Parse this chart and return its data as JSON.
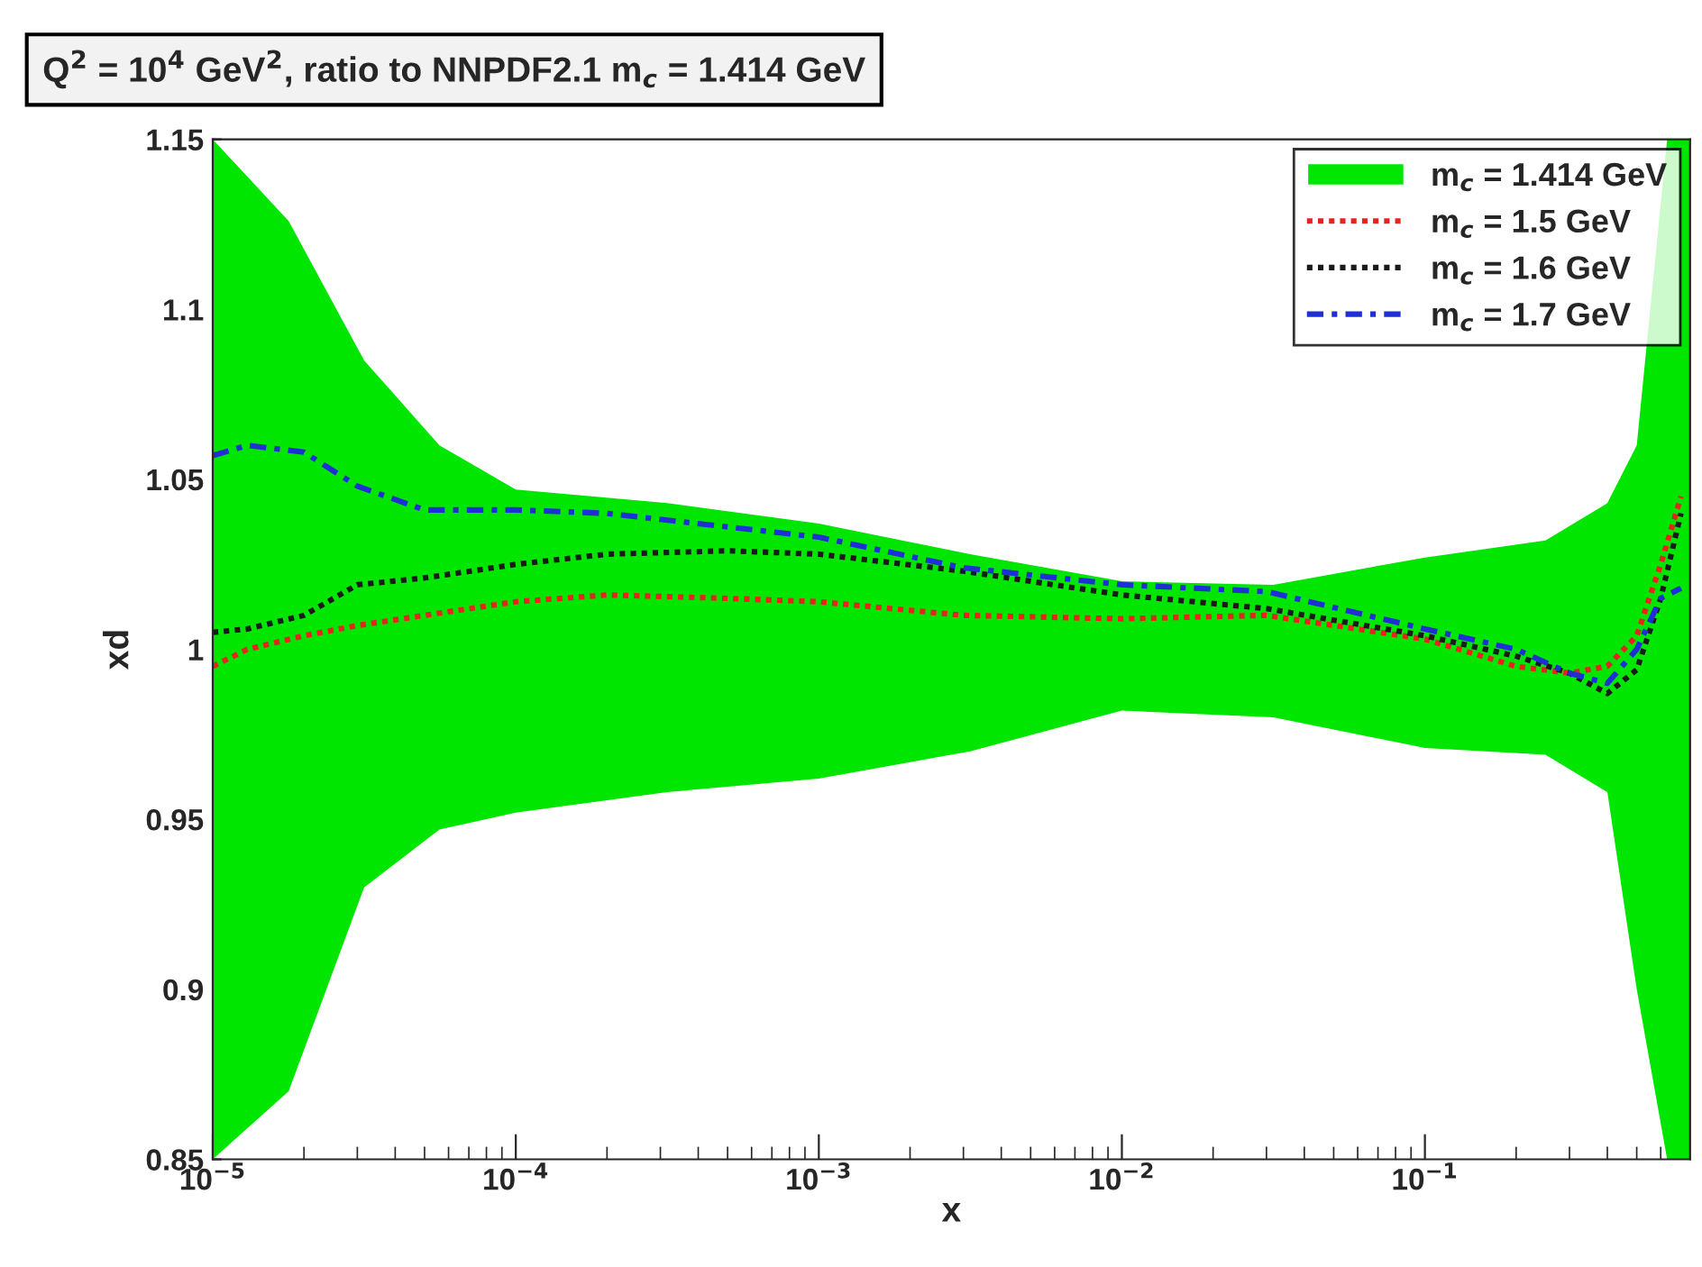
{
  "chart_data": {
    "type": "line",
    "title": "Q$^{2}$ = 10$^{4}$ GeV$^{2}$, ratio to NNPDF2.1 m$_{c}$ = 1.414 GeV",
    "xlabel": "x",
    "ylabel": "xd",
    "log": "x",
    "xlim": [
      1e-05,
      0.75
    ],
    "xticks": [
      {
        "value": 1e-05,
        "label": "10$^{−5}$"
      },
      {
        "value": 0.0001,
        "label": "10$^{−4}$"
      },
      {
        "value": 0.001,
        "label": "10$^{−3}$"
      },
      {
        "value": 0.01,
        "label": "10$^{−2}$"
      },
      {
        "value": 0.1,
        "label": "10$^{−1}$"
      }
    ],
    "ylim": [
      0.85,
      1.15
    ],
    "yticks": [
      0.85,
      0.9,
      0.95,
      1,
      1.05,
      1.1,
      1.15
    ],
    "grid": false,
    "legend": "top right",
    "series": [
      {
        "name": "m$_{c}$ = 1.414 GeV",
        "color": "#00e600",
        "x": [
          1e-05,
          1.78e-05,
          3.16e-05,
          5.6e-05,
          0.0001,
          0.000316,
          0.001,
          0.00316,
          0.01,
          0.0316,
          0.1,
          0.25,
          0.4,
          0.5,
          0.63,
          0.75
        ],
        "values": [
          null,
          null,
          null,
          null,
          null,
          null,
          null,
          null,
          null,
          null,
          null,
          null,
          null,
          null,
          null,
          null
        ],
        "lower": [
          0.85,
          0.87,
          0.93,
          0.947,
          0.952,
          0.958,
          0.962,
          0.97,
          0.982,
          0.98,
          0.971,
          0.969,
          0.958,
          0.9,
          0.85,
          0.85
        ],
        "upper": [
          1.15,
          1.126,
          1.085,
          1.06,
          1.047,
          1.043,
          1.037,
          1.028,
          1.02,
          1.019,
          1.027,
          1.032,
          1.043,
          1.06,
          1.15,
          1.15
        ]
      },
      {
        "name": "m$_{c}$ = 1.5 GeV",
        "color": "#e8231f",
        "line_style": "dotted",
        "x": [
          1e-05,
          1.3e-05,
          2e-05,
          3e-05,
          5e-05,
          0.0001,
          0.0002,
          0.0005,
          0.001,
          0.003,
          0.01,
          0.03,
          0.1,
          0.2,
          0.3,
          0.4,
          0.5,
          0.6,
          0.7
        ],
        "values": [
          0.995,
          1.0,
          1.004,
          1.007,
          1.01,
          1.014,
          1.016,
          1.015,
          1.014,
          1.01,
          1.009,
          1.01,
          1.003,
          0.995,
          0.993,
          0.995,
          1.004,
          1.025,
          1.045
        ]
      },
      {
        "name": "m$_{c}$ = 1.6 GeV",
        "color": "#1a1a1a",
        "line_style": "dotted",
        "x": [
          1e-05,
          1.3e-05,
          2e-05,
          3e-05,
          5e-05,
          0.0001,
          0.0002,
          0.0005,
          0.001,
          0.003,
          0.01,
          0.03,
          0.1,
          0.2,
          0.3,
          0.4,
          0.5,
          0.6,
          0.7
        ],
        "values": [
          1.005,
          1.006,
          1.01,
          1.019,
          1.021,
          1.025,
          1.028,
          1.029,
          1.028,
          1.023,
          1.016,
          1.012,
          1.004,
          0.998,
          0.993,
          0.987,
          0.994,
          1.015,
          1.04
        ]
      },
      {
        "name": "m$_{c}$ = 1.7 GeV",
        "color": "#1f2fd6",
        "line_style": "dashdot",
        "x": [
          1e-05,
          1.3e-05,
          2e-05,
          3e-05,
          5e-05,
          0.0001,
          0.0002,
          0.0005,
          0.001,
          0.003,
          0.01,
          0.03,
          0.1,
          0.2,
          0.3,
          0.4,
          0.5,
          0.6,
          0.7
        ],
        "values": [
          1.057,
          1.06,
          1.058,
          1.048,
          1.041,
          1.041,
          1.04,
          1.036,
          1.033,
          1.024,
          1.019,
          1.017,
          1.006,
          1.0,
          0.993,
          0.99,
          1.0,
          1.015,
          1.018
        ]
      }
    ]
  }
}
